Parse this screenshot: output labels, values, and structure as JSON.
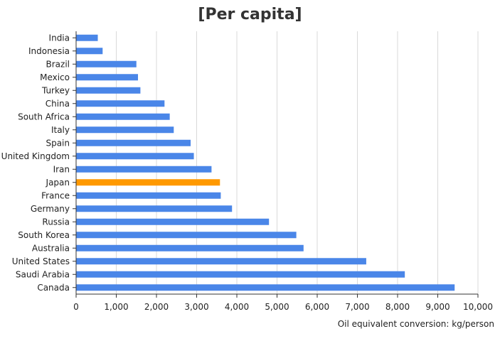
{
  "chart_data": {
    "type": "bar",
    "orientation": "horizontal",
    "title": "[Per capita]",
    "xlabel": "Oil equivalent conversion: kg/person",
    "ylabel": "",
    "categories": [
      "India",
      "Indonesia",
      "Brazil",
      "Mexico",
      "Turkey",
      "China",
      "South Africa",
      "Italy",
      "Spain",
      "United Kingdom",
      "Iran",
      "Japan",
      "France",
      "Germany",
      "Russia",
      "South Korea",
      "Australia",
      "United States",
      "Saudi Arabia",
      "Canada"
    ],
    "values": [
      540,
      660,
      1500,
      1540,
      1600,
      2200,
      2330,
      2430,
      2850,
      2930,
      3370,
      3580,
      3600,
      3880,
      4800,
      5480,
      5660,
      7220,
      8180,
      9420
    ],
    "highlight_category": "Japan",
    "xlim": [
      0,
      10000
    ],
    "xticks": [
      0,
      1000,
      2000,
      3000,
      4000,
      5000,
      6000,
      7000,
      8000,
      9000,
      10000
    ],
    "xtick_labels": [
      "0",
      "1,000",
      "2,000",
      "3,000",
      "4,000",
      "5,000",
      "6,000",
      "7,000",
      "8,000",
      "9,000",
      "10,000"
    ],
    "grid": true,
    "colors": {
      "bar": "#4a86e8",
      "highlight": "#ff9900",
      "grid": "#d9d9d9",
      "axis": "#333333"
    }
  }
}
